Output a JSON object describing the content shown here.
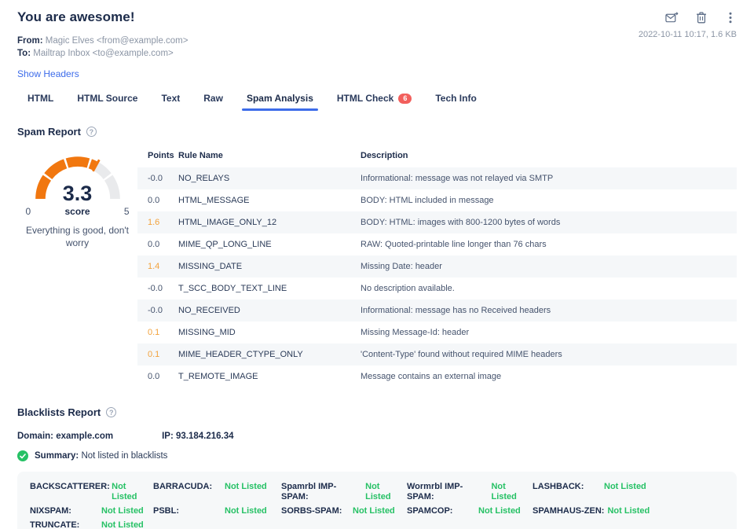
{
  "colors": {
    "accent_blue": "#3D6CEA",
    "gauge_orange": "#F1770F",
    "gauge_gray": "#E9EAEC",
    "points_amber": "#F2A23C",
    "status_green": "#26C165",
    "badge_red": "#F25F5C",
    "navy": "#1C2B4A"
  },
  "header": {
    "title": "You are awesome!",
    "from_label": "From:",
    "from_value": "Magic Elves <from@example.com>",
    "to_label": "To:",
    "to_value": "Mailtrap Inbox <to@example.com>",
    "show_headers_label": "Show Headers",
    "timestamp": "2022-10-11 10:17, 1.6 KB",
    "action_icons": [
      "forward-email-icon",
      "delete-icon",
      "more-menu-icon"
    ]
  },
  "tabs": [
    {
      "label": "HTML",
      "active": false
    },
    {
      "label": "HTML Source",
      "active": false
    },
    {
      "label": "Text",
      "active": false
    },
    {
      "label": "Raw",
      "active": false
    },
    {
      "label": "Spam Analysis",
      "active": true
    },
    {
      "label": "HTML Check",
      "active": false,
      "badge": "6"
    },
    {
      "label": "Tech Info",
      "active": false
    }
  ],
  "spam_report": {
    "heading": "Spam Report",
    "help_icon": "question-circle-icon",
    "gauge": {
      "score_display": "3.3",
      "value": 3.3,
      "min_label": "0",
      "max_label": "5",
      "max": 5,
      "segments": 5,
      "center_label": "score",
      "message": "Everything is good, don't worry"
    },
    "table": {
      "headers": [
        "Points",
        "Rule Name",
        "Description"
      ],
      "rows": [
        {
          "points": "-0.0",
          "highlight": false,
          "rule": "NO_RELAYS",
          "description": "Informational: message was not relayed via SMTP"
        },
        {
          "points": "0.0",
          "highlight": false,
          "rule": "HTML_MESSAGE",
          "description": "BODY: HTML included in message"
        },
        {
          "points": "1.6",
          "highlight": true,
          "rule": "HTML_IMAGE_ONLY_12",
          "description": "BODY: HTML: images with 800-1200 bytes of words"
        },
        {
          "points": "0.0",
          "highlight": false,
          "rule": "MIME_QP_LONG_LINE",
          "description": "RAW: Quoted-printable line longer than 76 chars"
        },
        {
          "points": "1.4",
          "highlight": true,
          "rule": "MISSING_DATE",
          "description": "Missing Date: header"
        },
        {
          "points": "-0.0",
          "highlight": false,
          "rule": "T_SCC_BODY_TEXT_LINE",
          "description": "No description available."
        },
        {
          "points": "-0.0",
          "highlight": false,
          "rule": "NO_RECEIVED",
          "description": "Informational: message has no Received headers"
        },
        {
          "points": "0.1",
          "highlight": true,
          "rule": "MISSING_MID",
          "description": "Missing Message-Id: header"
        },
        {
          "points": "0.1",
          "highlight": true,
          "rule": "MIME_HEADER_CTYPE_ONLY",
          "description": "'Content-Type' found without required MIME headers"
        },
        {
          "points": "0.0",
          "highlight": false,
          "rule": "T_REMOTE_IMAGE",
          "description": "Message contains an external image"
        }
      ]
    }
  },
  "blacklists_report": {
    "heading": "Blacklists Report",
    "help_icon": "question-circle-icon",
    "domain_label": "Domain: example.com",
    "ip_label": "IP: 93.184.216.34",
    "summary_label": "Summary:",
    "summary_value": "Not listed in blacklists",
    "entries": [
      {
        "name": "BACKSCATTERER:",
        "status": "Not Listed"
      },
      {
        "name": "BARRACUDA:",
        "status": "Not Listed"
      },
      {
        "name": "Spamrbl IMP-SPAM:",
        "status": "Not Listed"
      },
      {
        "name": "Wormrbl IMP-SPAM:",
        "status": "Not Listed"
      },
      {
        "name": "LASHBACK:",
        "status": "Not Listed"
      },
      {
        "name": "NIXSPAM:",
        "status": "Not Listed"
      },
      {
        "name": "PSBL:",
        "status": "Not Listed"
      },
      {
        "name": "SORBS-SPAM:",
        "status": "Not Listed"
      },
      {
        "name": "SPAMCOP:",
        "status": "Not Listed"
      },
      {
        "name": "SPAMHAUS-ZEN:",
        "status": "Not Listed"
      },
      {
        "name": "TRUNCATE:",
        "status": "Not Listed"
      }
    ]
  },
  "chart_data": {
    "type": "gauge",
    "title": "Spam score",
    "value": 3.3,
    "min": 0,
    "max": 5,
    "segments": 5,
    "value_label": "3.3",
    "center_label": "score",
    "annotation": "Everything is good, don't worry"
  }
}
